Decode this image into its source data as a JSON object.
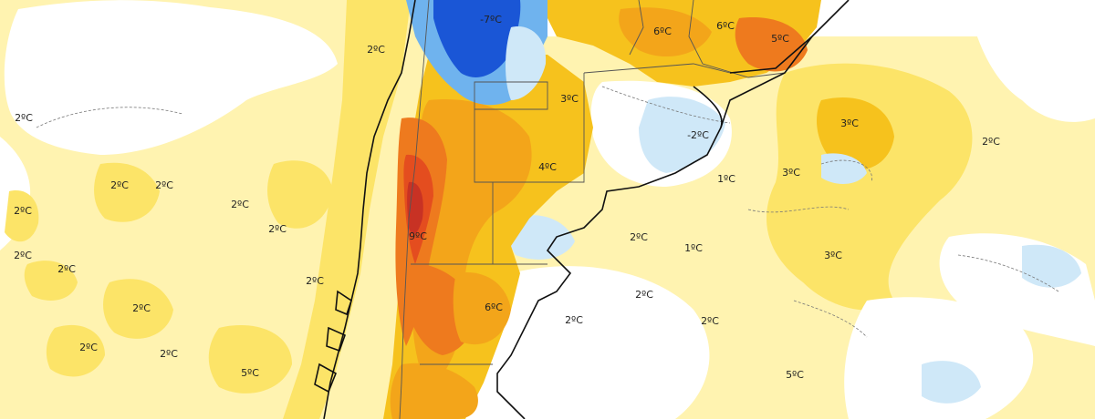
{
  "map": {
    "palette": {
      "cold_strong": "#1a56d6",
      "cold": "#6fb3ee",
      "cold_light": "#cfe8f8",
      "neutral": "#ffffff",
      "warm_faint": "#fff3b0",
      "warm_light": "#fce468",
      "warm": "#f6c21d",
      "warm_mid": "#f3a51a",
      "hot": "#ee7a1e",
      "hotter": "#e44d1f",
      "hottest": "#c83224",
      "land_border": "#111111",
      "admin_border": "#555555",
      "contour": "#777777"
    },
    "labels": [
      {
        "id": "nw-ocean-2",
        "text": "2ºC"
      },
      {
        "id": "far-west-2",
        "text": "2ºC"
      },
      {
        "id": "mid-north-minus7",
        "text": "-7ºC"
      },
      {
        "id": "ne-6a",
        "text": "6ºC"
      },
      {
        "id": "ne-6b",
        "text": "6ºC"
      },
      {
        "id": "ne-5",
        "text": "5ºC"
      },
      {
        "id": "center-3",
        "text": "3ºC"
      },
      {
        "id": "rio-plata-minus2",
        "text": "-2ºC"
      },
      {
        "id": "atl-3a",
        "text": "3ºC"
      },
      {
        "id": "atl-2-east",
        "text": "2ºC"
      },
      {
        "id": "center-4",
        "text": "4ºC"
      },
      {
        "id": "atl-1a",
        "text": "1ºC"
      },
      {
        "id": "atl-3b",
        "text": "3ºC"
      },
      {
        "id": "pac-2a",
        "text": "2ºC"
      },
      {
        "id": "pac-2b",
        "text": "2ºC"
      },
      {
        "id": "pac-2c",
        "text": "2ºC"
      },
      {
        "id": "pac-2d",
        "text": "2ºC"
      },
      {
        "id": "andes-9",
        "text": "9ºC"
      },
      {
        "id": "atl-2b",
        "text": "2ºC"
      },
      {
        "id": "atl-1b",
        "text": "1ºC"
      },
      {
        "id": "atl-3c",
        "text": "3ºC"
      },
      {
        "id": "pac-2e",
        "text": "2ºC"
      },
      {
        "id": "pac-2f",
        "text": "2ºC"
      },
      {
        "id": "pac-2g",
        "text": "2ºC"
      },
      {
        "id": "patagonia-6",
        "text": "6ºC"
      },
      {
        "id": "atl-2c",
        "text": "2ºC"
      },
      {
        "id": "atl-2d",
        "text": "2ºC"
      },
      {
        "id": "atl-2e",
        "text": "2ºC"
      },
      {
        "id": "pac-2h",
        "text": "2ºC"
      },
      {
        "id": "pac-2i",
        "text": "2ºC"
      },
      {
        "id": "pac-2j",
        "text": "2ºC"
      },
      {
        "id": "atl-2f",
        "text": "2ºC"
      },
      {
        "id": "south-5a",
        "text": "5ºC"
      },
      {
        "id": "south-5b",
        "text": "5ºC"
      }
    ]
  }
}
